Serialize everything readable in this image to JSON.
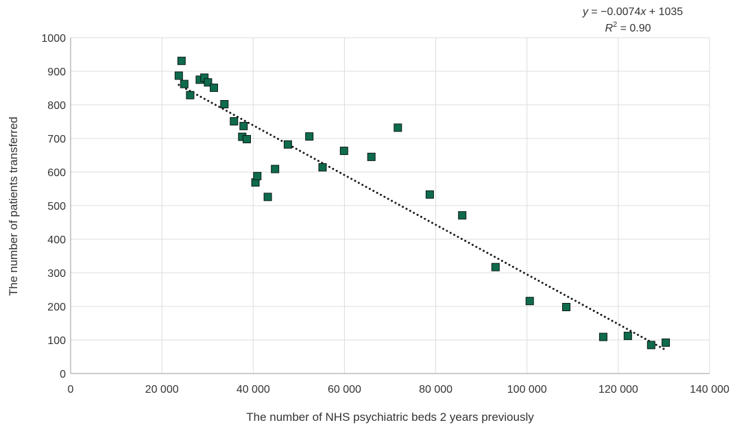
{
  "chart_data": {
    "type": "scatter",
    "title": "",
    "xlabel": "The number of NHS psychiatric beds 2 years previously",
    "ylabel": "The number of patients transferred",
    "xlim": [
      0,
      140000
    ],
    "ylim": [
      0,
      1000
    ],
    "x_ticks": [
      0,
      20000,
      40000,
      60000,
      80000,
      100000,
      120000,
      140000
    ],
    "x_tick_labels": [
      "0",
      "20 000",
      "40 000",
      "60 000",
      "80 000",
      "100 000",
      "120 000",
      "140 000"
    ],
    "y_ticks": [
      0,
      100,
      200,
      300,
      400,
      500,
      600,
      700,
      800,
      900,
      1000
    ],
    "y_tick_labels": [
      "0",
      "100",
      "200",
      "300",
      "400",
      "500",
      "600",
      "700",
      "800",
      "900",
      "1000"
    ],
    "grid": true,
    "marker_color": "#0f6b4e",
    "trendline": {
      "style": "dotted",
      "slope": -0.0074,
      "intercept": 1035,
      "x_range": [
        23700,
        130000
      ],
      "equation_y": "y",
      "equation_rest": " = −0.0074",
      "equation_x": "x",
      "equation_tail": " + 1035",
      "r2_label": "R",
      "r2_sup": "2",
      "r2_value": " = 0.90"
    },
    "points": [
      {
        "x": 23700,
        "y": 887
      },
      {
        "x": 24300,
        "y": 931
      },
      {
        "x": 24900,
        "y": 862
      },
      {
        "x": 26200,
        "y": 829
      },
      {
        "x": 28300,
        "y": 875
      },
      {
        "x": 29300,
        "y": 881
      },
      {
        "x": 30100,
        "y": 867
      },
      {
        "x": 31400,
        "y": 851
      },
      {
        "x": 33700,
        "y": 802
      },
      {
        "x": 35800,
        "y": 751
      },
      {
        "x": 37600,
        "y": 705
      },
      {
        "x": 37900,
        "y": 737
      },
      {
        "x": 38600,
        "y": 698
      },
      {
        "x": 40500,
        "y": 569
      },
      {
        "x": 40900,
        "y": 588
      },
      {
        "x": 43200,
        "y": 526
      },
      {
        "x": 44800,
        "y": 609
      },
      {
        "x": 47600,
        "y": 682
      },
      {
        "x": 52300,
        "y": 706
      },
      {
        "x": 55200,
        "y": 614
      },
      {
        "x": 59900,
        "y": 663
      },
      {
        "x": 65900,
        "y": 645
      },
      {
        "x": 71700,
        "y": 732
      },
      {
        "x": 78700,
        "y": 533
      },
      {
        "x": 85800,
        "y": 471
      },
      {
        "x": 93100,
        "y": 317
      },
      {
        "x": 100600,
        "y": 216
      },
      {
        "x": 108600,
        "y": 198
      },
      {
        "x": 116700,
        "y": 109
      },
      {
        "x": 122100,
        "y": 112
      },
      {
        "x": 127200,
        "y": 85
      },
      {
        "x": 130400,
        "y": 92
      }
    ]
  }
}
